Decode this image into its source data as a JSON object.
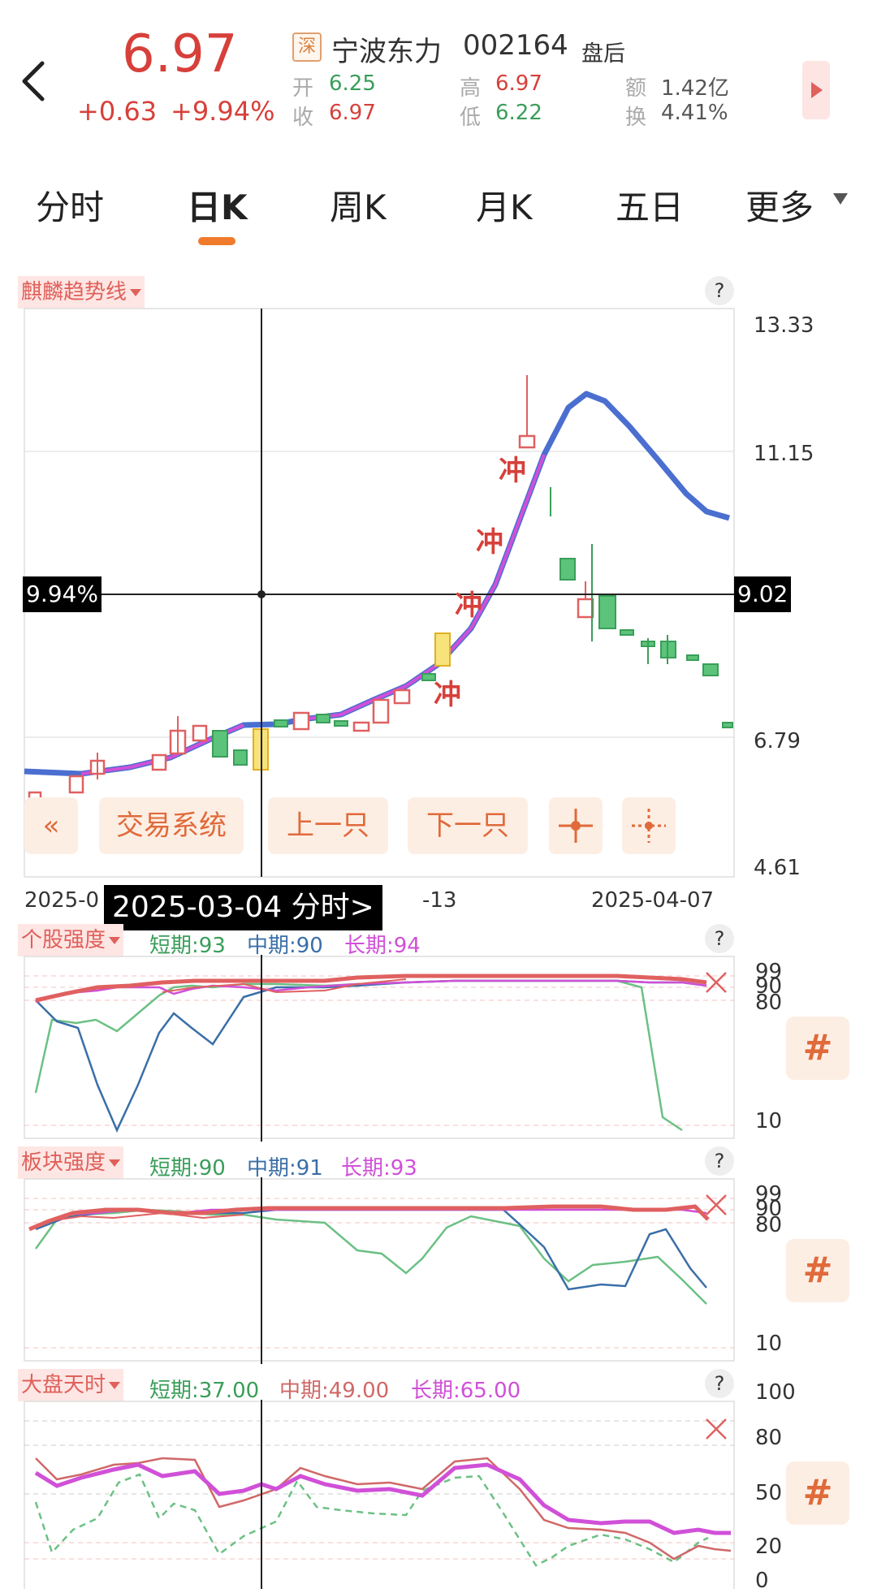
{
  "header": {
    "price": "6.97",
    "change": "+0.63",
    "change_pct": "+9.94%",
    "exchange": "深",
    "name": "宁波东力",
    "code": "002164",
    "status": "盘后",
    "quotes": [
      {
        "label": "开",
        "value": "6.25",
        "color": "green"
      },
      {
        "label": "高",
        "value": "6.97",
        "color": "red"
      },
      {
        "label": "额",
        "value": "1.42亿",
        "color": "gray"
      },
      {
        "label": "收",
        "value": "6.97",
        "color": "red"
      },
      {
        "label": "低",
        "value": "6.22",
        "color": "green"
      },
      {
        "label": "换",
        "value": "4.41%",
        "color": "gray"
      }
    ]
  },
  "tabs": [
    "分时",
    "日K",
    "周K",
    "月K",
    "五日",
    "更多"
  ],
  "active_tab": "日K",
  "main_chart": {
    "indicator": "麒麟趋势线",
    "price_axis": [
      "13.33",
      "11.15",
      "9.02",
      "6.79",
      "4.61"
    ],
    "crosshair_left": "9.94%",
    "crosshair_right": "9.02",
    "date_left": "2025-0",
    "date_mid": "-13",
    "date_right": "2025-04-07",
    "tooltip_date": "2025-03-04  分时>",
    "chong": "冲",
    "buttons": {
      "prev": "«",
      "trade": "交易系统",
      "up": "上一只",
      "down": "下一只"
    }
  },
  "stock_strength": {
    "label": "个股强度",
    "short": "短期:93",
    "mid": "中期:90",
    "long": "长期:94",
    "axis": [
      "99",
      "90",
      "80",
      "10"
    ]
  },
  "sector_strength": {
    "label": "板块强度",
    "short": "短期:90",
    "mid": "中期:91",
    "long": "长期:93",
    "axis": [
      "99",
      "90",
      "80",
      "10"
    ]
  },
  "market_timing": {
    "label": "大盘天时",
    "short": "短期:37.00",
    "mid": "中期:49.00",
    "long": "长期:65.00",
    "axis": [
      "100",
      "80",
      "50",
      "20",
      "0"
    ]
  },
  "hash_icon": "#",
  "qmark": "?",
  "colors": {
    "red": "#d7403a",
    "green": "#3a9e5a",
    "blue": "#4a6fd0",
    "magenta": "#d050d8"
  }
}
